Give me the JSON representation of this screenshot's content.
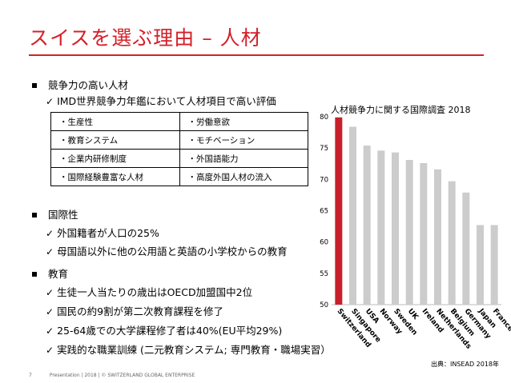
{
  "title": "スイスを選ぶ理由 – 人材",
  "sections": [
    {
      "heading": "競争力の高い人材",
      "items": [
        "IMD世界競争力年鑑において人材項目で高い評価"
      ]
    },
    {
      "heading": "国際性",
      "items": [
        "外国籍者が人口の25%",
        "母国語以外に他の公用語と英語の小学校からの教育"
      ]
    },
    {
      "heading": "教育",
      "items": [
        "生徒一人当たりの歳出はOECD加盟国中2位",
        "国民の約9割が第二次教育課程を修了",
        "25-64歳での大学課程修了者は40%(EU平均29%)",
        "実践的な職業訓練 (二元教育システム; 専門教育・職場実習）"
      ]
    }
  ],
  "factors_table": [
    [
      "・生産性",
      "・労働意欲"
    ],
    [
      "・教育システム",
      "・モチベーション"
    ],
    [
      "・企業内研修制度",
      "・外国語能力"
    ],
    [
      "・国際経験豊富な人材",
      "・高度外国人材の流入"
    ]
  ],
  "chart_data": {
    "type": "bar",
    "title": "人材競争力に関する国際調査 2018",
    "categories": [
      "Switzerland",
      "Singapore",
      "USA",
      "Norway",
      "Sweden",
      "UK",
      "Ireland",
      "Netherlands",
      "Belgium",
      "Germany",
      "Japan",
      "France"
    ],
    "values": [
      79.9,
      78.4,
      75.4,
      74.6,
      74.3,
      73.1,
      72.6,
      71.6,
      69.7,
      67.9,
      62.7,
      62.7
    ],
    "ylim": [
      50,
      80
    ],
    "yticks": [
      50,
      55,
      60,
      65,
      70,
      75,
      80
    ],
    "colors": {
      "highlight": "#c8202a",
      "default": "#cccccc"
    },
    "grid": false
  },
  "source": "出典：INSEAD 2018年",
  "footer": {
    "page": "7",
    "text": "Presentation | 2018 | © SWITZERLAND GLOBAL ENTERPRISE"
  },
  "colors": {
    "accent": "#d4202a"
  },
  "icons": {
    "bullet": "square-bullet-icon",
    "check": "checkmark-icon"
  }
}
